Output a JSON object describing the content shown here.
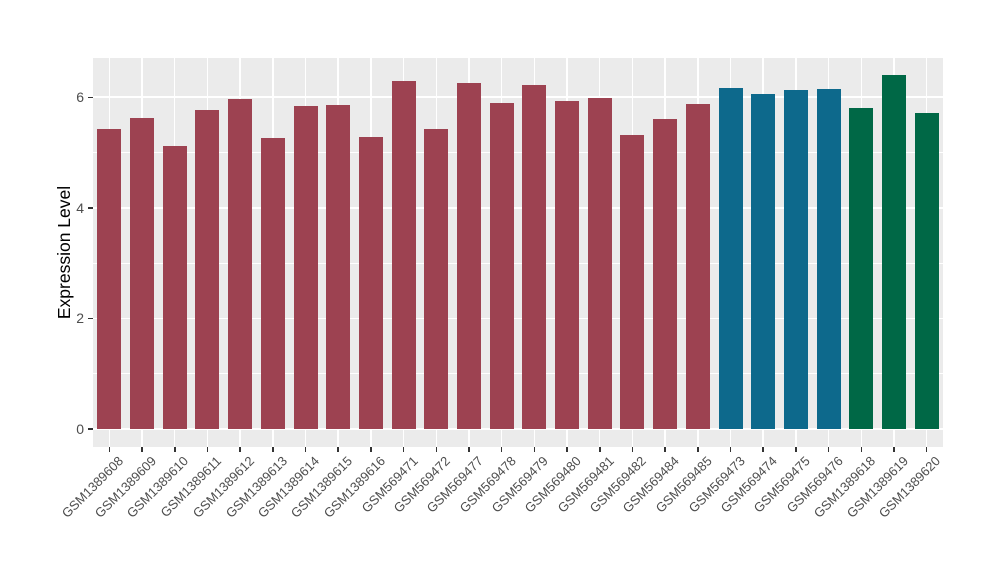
{
  "chart_data": {
    "type": "bar",
    "title": "",
    "xlabel": "",
    "ylabel": "Expression Level",
    "ylim": [
      0,
      6.69
    ],
    "yticks": [
      0,
      2,
      4,
      6
    ],
    "yticks_minor": [
      1,
      3,
      5
    ],
    "grid": "white major and minor horizontal gridlines plus vertical gridlines at each category, on gray panel",
    "legend_position": "none",
    "style": {
      "panel_background": "#EBEBEB",
      "gridline_color": "#FFFFFF",
      "axis_text_color": "#4D4D4D",
      "tick_mark_color": "#333333",
      "palette": [
        "#9D4251",
        "#0D698C",
        "#006846"
      ]
    },
    "bars": [
      {
        "label": "GSM1389608",
        "value": 5.43,
        "color": "#9D4251"
      },
      {
        "label": "GSM1389609",
        "value": 5.63,
        "color": "#9D4251"
      },
      {
        "label": "GSM1389610",
        "value": 5.11,
        "color": "#9D4251"
      },
      {
        "label": "GSM1389611",
        "value": 5.77,
        "color": "#9D4251"
      },
      {
        "label": "GSM1389612",
        "value": 5.96,
        "color": "#9D4251"
      },
      {
        "label": "GSM1389613",
        "value": 5.27,
        "color": "#9D4251"
      },
      {
        "label": "GSM1389614",
        "value": 5.84,
        "color": "#9D4251"
      },
      {
        "label": "GSM1389615",
        "value": 5.86,
        "color": "#9D4251"
      },
      {
        "label": "GSM1389616",
        "value": 5.29,
        "color": "#9D4251"
      },
      {
        "label": "GSM569471",
        "value": 6.29,
        "color": "#9D4251"
      },
      {
        "label": "GSM569472",
        "value": 5.43,
        "color": "#9D4251"
      },
      {
        "label": "GSM569477",
        "value": 6.26,
        "color": "#9D4251"
      },
      {
        "label": "GSM569478",
        "value": 5.89,
        "color": "#9D4251"
      },
      {
        "label": "GSM569479",
        "value": 6.23,
        "color": "#9D4251"
      },
      {
        "label": "GSM569480",
        "value": 5.94,
        "color": "#9D4251"
      },
      {
        "label": "GSM569481",
        "value": 5.98,
        "color": "#9D4251"
      },
      {
        "label": "GSM569482",
        "value": 5.31,
        "color": "#9D4251"
      },
      {
        "label": "GSM569484",
        "value": 5.6,
        "color": "#9D4251"
      },
      {
        "label": "GSM569485",
        "value": 5.88,
        "color": "#9D4251"
      },
      {
        "label": "GSM569473",
        "value": 6.17,
        "color": "#0D698C"
      },
      {
        "label": "GSM569474",
        "value": 6.05,
        "color": "#0D698C"
      },
      {
        "label": "GSM569475",
        "value": 6.13,
        "color": "#0D698C"
      },
      {
        "label": "GSM569476",
        "value": 6.15,
        "color": "#0D698C"
      },
      {
        "label": "GSM1389618",
        "value": 5.8,
        "color": "#006846"
      },
      {
        "label": "GSM1389619",
        "value": 6.41,
        "color": "#006846"
      },
      {
        "label": "GSM1389620",
        "value": 5.72,
        "color": "#006846"
      }
    ]
  }
}
